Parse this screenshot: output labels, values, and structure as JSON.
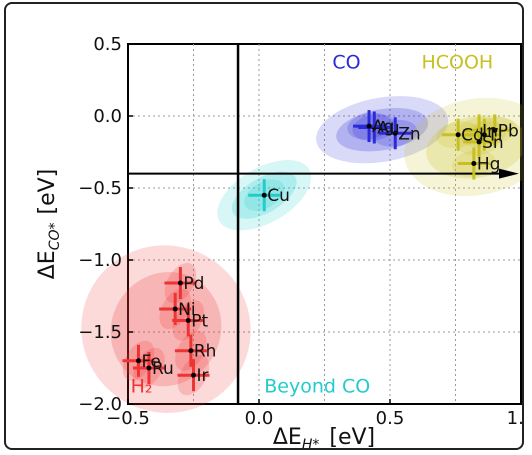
{
  "chart_data": {
    "type": "scatter",
    "xlabel_base": "ΔE",
    "xlabel_sub": "H*",
    "xlabel_unit": "[eV]",
    "ylabel_base": "ΔE",
    "ylabel_sub": "CO*",
    "ylabel_unit": "[eV]",
    "xlim": [
      -0.5,
      1.0
    ],
    "ylim": [
      -2.0,
      0.5
    ],
    "xticks": [
      "−0.5",
      "0.0",
      "0.5",
      "1.0"
    ],
    "xtick_values": [
      -0.5,
      0.0,
      0.5,
      1.0
    ],
    "yticks": [
      "0.5",
      "0.0",
      "−0.5",
      "−1.0",
      "−1.5",
      "−2.0"
    ],
    "ytick_values": [
      0.5,
      0.0,
      -0.5,
      -1.0,
      -1.5,
      -2.0
    ],
    "grid": true,
    "reference_lines": {
      "vertical_x": -0.08,
      "horizontal_y": -0.4
    },
    "regions": [
      {
        "name": "CO",
        "label": "CO",
        "color": "#2a2ad8",
        "label_x": 0.28,
        "label_y": 0.33
      },
      {
        "name": "HCOOH",
        "label": "HCOOH",
        "color": "#c8c020",
        "label_x": 0.62,
        "label_y": 0.33
      },
      {
        "name": "H2",
        "label": "H₂",
        "color": "#ee3333",
        "label_x": -0.49,
        "label_y": -1.92
      },
      {
        "name": "Beyond CO",
        "label": "Beyond CO",
        "color": "#22cccc",
        "label_x": 0.02,
        "label_y": -1.92
      }
    ],
    "points": [
      {
        "label": "Au",
        "x": 0.44,
        "y": -0.08,
        "group": "CO"
      },
      {
        "label": "Ag",
        "x": 0.42,
        "y": -0.07,
        "group": "CO"
      },
      {
        "label": "Zn",
        "x": 0.52,
        "y": -0.12,
        "group": "CO"
      },
      {
        "label": "Cd",
        "x": 0.76,
        "y": -0.13,
        "group": "HCOOH"
      },
      {
        "label": "In",
        "x": 0.84,
        "y": -0.1,
        "group": "HCOOH"
      },
      {
        "label": "Tl",
        "x": 0.86,
        "y": -0.13,
        "group": "HCOOH"
      },
      {
        "label": "Sn",
        "x": 0.84,
        "y": -0.18,
        "group": "HCOOH"
      },
      {
        "label": "Pb",
        "x": 0.9,
        "y": -0.1,
        "group": "HCOOH"
      },
      {
        "label": "Hg",
        "x": 0.82,
        "y": -0.33,
        "group": "HCOOH"
      },
      {
        "label": "Cu",
        "x": 0.02,
        "y": -0.55,
        "group": "Beyond CO"
      },
      {
        "label": "Pd",
        "x": -0.3,
        "y": -1.16,
        "group": "H2"
      },
      {
        "label": "Ni",
        "x": -0.32,
        "y": -1.34,
        "group": "H2"
      },
      {
        "label": "Pt",
        "x": -0.27,
        "y": -1.42,
        "group": "H2"
      },
      {
        "label": "Rh",
        "x": -0.26,
        "y": -1.63,
        "group": "H2"
      },
      {
        "label": "Fe",
        "x": -0.46,
        "y": -1.7,
        "group": "H2"
      },
      {
        "label": "Ru",
        "x": -0.42,
        "y": -1.75,
        "group": "H2"
      },
      {
        "label": "Ir",
        "x": -0.25,
        "y": -1.8,
        "group": "H2"
      }
    ]
  }
}
